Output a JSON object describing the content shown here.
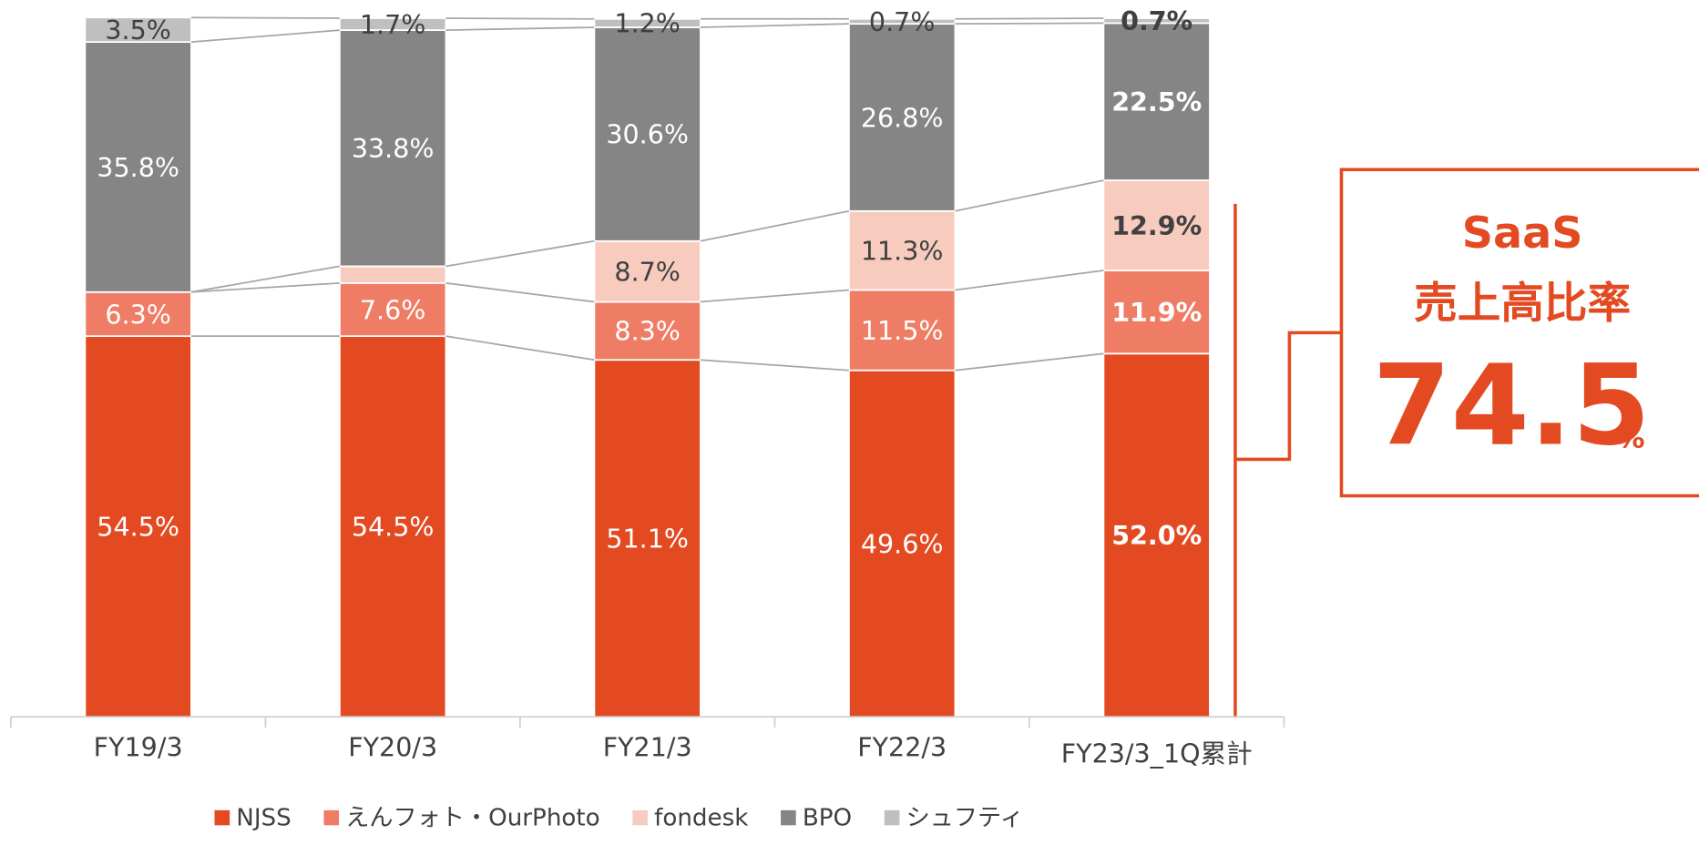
{
  "chart_data": {
    "type": "stacked_bar",
    "categories": [
      "FY19/3",
      "FY20/3",
      "FY21/3",
      "FY22/3",
      "FY23/3_1Q累計"
    ],
    "ylim": [
      0,
      100
    ],
    "series": [
      {
        "name": "NJSS",
        "color": "#e34a22",
        "values": [
          54.5,
          54.5,
          51.1,
          49.6,
          52.0
        ],
        "value_labels": [
          "54.5%",
          "54.5%",
          "51.1%",
          "49.6%",
          "52.0%"
        ]
      },
      {
        "name": "えんフォト・OurPhoto",
        "color": "#ef7d65",
        "values": [
          6.3,
          7.6,
          8.3,
          11.5,
          11.9
        ],
        "value_labels": [
          "6.3%",
          "7.6%",
          "8.3%",
          "11.5%",
          "11.9%"
        ]
      },
      {
        "name": "fondesk",
        "color": "#f8cbbf",
        "values": [
          null,
          2.4,
          8.7,
          11.3,
          12.9
        ],
        "value_labels": [
          null,
          null,
          "8.7%",
          "11.3%",
          "12.9%"
        ]
      },
      {
        "name": "BPO",
        "color": "#858585",
        "values": [
          35.8,
          33.8,
          30.6,
          26.8,
          22.5
        ],
        "value_labels": [
          "35.8%",
          "33.8%",
          "30.6%",
          "26.8%",
          "22.5%"
        ]
      },
      {
        "name": "シュフティ",
        "color": "#bfbfbf",
        "values": [
          3.5,
          1.7,
          1.2,
          0.7,
          0.7
        ],
        "value_labels": [
          "3.5%",
          "1.7%",
          "1.2%",
          "0.7%",
          "0.7%"
        ]
      }
    ],
    "annotations": [
      "SaaS",
      "売上高比率",
      "74.5",
      "%"
    ]
  }
}
